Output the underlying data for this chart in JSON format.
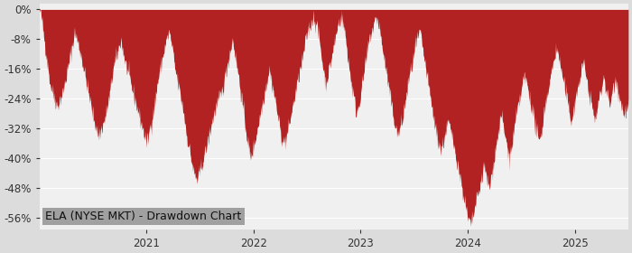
{
  "title": "ELA (NYSE MKT) - Drawdown Chart",
  "fill_color": "#b22222",
  "bg_color": "#dcdcdc",
  "plot_bg_color": "#f0f0f0",
  "ylabel_color": "#333333",
  "title_bg_color": "#a0a0a0",
  "title_text_color": "#111111",
  "ylim": [
    -59,
    1.5
  ],
  "yticks": [
    0,
    -8,
    -16,
    -24,
    -32,
    -40,
    -48,
    -56
  ],
  "start_year": 2020.0,
  "total_years": 5.5,
  "x_tick_years": [
    2021,
    2022,
    2023,
    2024,
    2025
  ],
  "title_fontsize": 9,
  "tick_fontsize": 8.5,
  "keypoints": [
    [
      0.0,
      0.0
    ],
    [
      0.003,
      -2.0
    ],
    [
      0.008,
      -8.0
    ],
    [
      0.018,
      -20.0
    ],
    [
      0.03,
      -26.0
    ],
    [
      0.04,
      -22.0
    ],
    [
      0.048,
      -16.0
    ],
    [
      0.055,
      -10.0
    ],
    [
      0.06,
      -6.0
    ],
    [
      0.07,
      -12.0
    ],
    [
      0.08,
      -20.0
    ],
    [
      0.09,
      -28.0
    ],
    [
      0.1,
      -34.0
    ],
    [
      0.11,
      -30.0
    ],
    [
      0.118,
      -24.0
    ],
    [
      0.125,
      -16.0
    ],
    [
      0.132,
      -12.0
    ],
    [
      0.138,
      -8.0
    ],
    [
      0.145,
      -14.0
    ],
    [
      0.155,
      -20.0
    ],
    [
      0.165,
      -26.0
    ],
    [
      0.175,
      -32.0
    ],
    [
      0.182,
      -36.0
    ],
    [
      0.19,
      -30.0
    ],
    [
      0.195,
      -26.0
    ],
    [
      0.2,
      -20.0
    ],
    [
      0.205,
      -16.0
    ],
    [
      0.21,
      -12.0
    ],
    [
      0.216,
      -8.0
    ],
    [
      0.22,
      -6.0
    ],
    [
      0.225,
      -10.0
    ],
    [
      0.23,
      -16.0
    ],
    [
      0.238,
      -22.0
    ],
    [
      0.245,
      -28.0
    ],
    [
      0.25,
      -34.0
    ],
    [
      0.255,
      -38.0
    ],
    [
      0.262,
      -44.0
    ],
    [
      0.268,
      -46.0
    ],
    [
      0.275,
      -42.0
    ],
    [
      0.285,
      -36.0
    ],
    [
      0.293,
      -30.0
    ],
    [
      0.3,
      -26.0
    ],
    [
      0.31,
      -22.0
    ],
    [
      0.315,
      -18.0
    ],
    [
      0.32,
      -14.0
    ],
    [
      0.325,
      -10.0
    ],
    [
      0.328,
      -8.0
    ],
    [
      0.332,
      -12.0
    ],
    [
      0.338,
      -18.0
    ],
    [
      0.345,
      -26.0
    ],
    [
      0.352,
      -34.0
    ],
    [
      0.358,
      -40.0
    ],
    [
      0.365,
      -36.0
    ],
    [
      0.37,
      -32.0
    ],
    [
      0.375,
      -28.0
    ],
    [
      0.38,
      -24.0
    ],
    [
      0.385,
      -20.0
    ],
    [
      0.39,
      -16.0
    ],
    [
      0.395,
      -20.0
    ],
    [
      0.402,
      -26.0
    ],
    [
      0.408,
      -32.0
    ],
    [
      0.414,
      -36.0
    ],
    [
      0.42,
      -34.0
    ],
    [
      0.425,
      -30.0
    ],
    [
      0.43,
      -26.0
    ],
    [
      0.435,
      -22.0
    ],
    [
      0.44,
      -18.0
    ],
    [
      0.446,
      -14.0
    ],
    [
      0.45,
      -10.0
    ],
    [
      0.455,
      -6.0
    ],
    [
      0.46,
      -4.0
    ],
    [
      0.465,
      -2.0
    ],
    [
      0.47,
      -4.0
    ],
    [
      0.475,
      -8.0
    ],
    [
      0.48,
      -14.0
    ],
    [
      0.486,
      -20.0
    ],
    [
      0.492,
      -16.0
    ],
    [
      0.497,
      -12.0
    ],
    [
      0.502,
      -8.0
    ],
    [
      0.507,
      -4.0
    ],
    [
      0.512,
      -2.0
    ],
    [
      0.516,
      -4.0
    ],
    [
      0.52,
      -8.0
    ],
    [
      0.526,
      -16.0
    ],
    [
      0.532,
      -22.0
    ],
    [
      0.538,
      -28.0
    ],
    [
      0.544,
      -24.0
    ],
    [
      0.548,
      -20.0
    ],
    [
      0.552,
      -16.0
    ],
    [
      0.556,
      -12.0
    ],
    [
      0.56,
      -8.0
    ],
    [
      0.564,
      -6.0
    ],
    [
      0.568,
      -4.0
    ],
    [
      0.572,
      -2.0
    ],
    [
      0.576,
      -4.0
    ],
    [
      0.582,
      -10.0
    ],
    [
      0.588,
      -16.0
    ],
    [
      0.594,
      -22.0
    ],
    [
      0.6,
      -28.0
    ],
    [
      0.608,
      -34.0
    ],
    [
      0.616,
      -30.0
    ],
    [
      0.622,
      -24.0
    ],
    [
      0.628,
      -18.0
    ],
    [
      0.634,
      -14.0
    ],
    [
      0.638,
      -10.0
    ],
    [
      0.642,
      -8.0
    ],
    [
      0.646,
      -6.0
    ],
    [
      0.65,
      -10.0
    ],
    [
      0.656,
      -16.0
    ],
    [
      0.662,
      -22.0
    ],
    [
      0.668,
      -28.0
    ],
    [
      0.675,
      -34.0
    ],
    [
      0.682,
      -38.0
    ],
    [
      0.688,
      -34.0
    ],
    [
      0.694,
      -30.0
    ],
    [
      0.7,
      -34.0
    ],
    [
      0.706,
      -38.0
    ],
    [
      0.713,
      -44.0
    ],
    [
      0.72,
      -50.0
    ],
    [
      0.727,
      -56.0
    ],
    [
      0.733,
      -58.0
    ],
    [
      0.738,
      -54.0
    ],
    [
      0.744,
      -50.0
    ],
    [
      0.75,
      -46.0
    ],
    [
      0.755,
      -42.0
    ],
    [
      0.76,
      -46.0
    ],
    [
      0.764,
      -48.0
    ],
    [
      0.768,
      -44.0
    ],
    [
      0.772,
      -40.0
    ],
    [
      0.776,
      -36.0
    ],
    [
      0.78,
      -32.0
    ],
    [
      0.784,
      -28.0
    ],
    [
      0.788,
      -32.0
    ],
    [
      0.793,
      -36.0
    ],
    [
      0.798,
      -40.0
    ],
    [
      0.803,
      -36.0
    ],
    [
      0.808,
      -30.0
    ],
    [
      0.813,
      -26.0
    ],
    [
      0.818,
      -22.0
    ],
    [
      0.823,
      -18.0
    ],
    [
      0.828,
      -20.0
    ],
    [
      0.833,
      -24.0
    ],
    [
      0.838,
      -28.0
    ],
    [
      0.843,
      -32.0
    ],
    [
      0.848,
      -36.0
    ],
    [
      0.853,
      -32.0
    ],
    [
      0.858,
      -26.0
    ],
    [
      0.863,
      -22.0
    ],
    [
      0.868,
      -18.0
    ],
    [
      0.873,
      -14.0
    ],
    [
      0.878,
      -10.0
    ],
    [
      0.883,
      -14.0
    ],
    [
      0.888,
      -18.0
    ],
    [
      0.893,
      -22.0
    ],
    [
      0.898,
      -26.0
    ],
    [
      0.903,
      -30.0
    ],
    [
      0.908,
      -26.0
    ],
    [
      0.913,
      -22.0
    ],
    [
      0.918,
      -18.0
    ],
    [
      0.923,
      -14.0
    ],
    [
      0.928,
      -18.0
    ],
    [
      0.933,
      -22.0
    ],
    [
      0.938,
      -26.0
    ],
    [
      0.943,
      -30.0
    ],
    [
      0.948,
      -26.0
    ],
    [
      0.953,
      -22.0
    ],
    [
      0.958,
      -18.0
    ],
    [
      0.963,
      -22.0
    ],
    [
      0.968,
      -26.0
    ],
    [
      0.973,
      -22.0
    ],
    [
      0.978,
      -18.0
    ],
    [
      0.983,
      -22.0
    ],
    [
      0.988,
      -26.0
    ],
    [
      0.993,
      -28.0
    ],
    [
      1.0,
      -26.0
    ]
  ]
}
